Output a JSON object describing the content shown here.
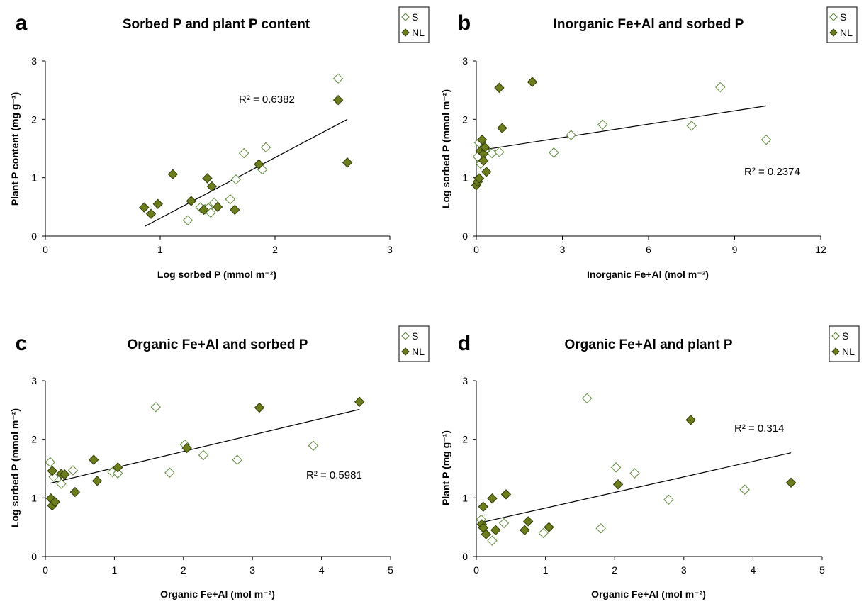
{
  "colors": {
    "nl_fill": "#6b7d1c",
    "s_stroke": "#5e8a3a",
    "axis": "#000000"
  },
  "legend": {
    "s_label": "S",
    "nl_label": "NL"
  },
  "chart_data": [
    {
      "panel": "a",
      "type": "scatter",
      "title": "Sorbed P and plant P content",
      "xlabel": "Log sorbed P (mmol m⁻²)",
      "ylabel": "Plant P content (mg g⁻¹)",
      "xlim": [
        0,
        3
      ],
      "ylim": [
        0,
        3
      ],
      "xticks": [
        0,
        1,
        2,
        3
      ],
      "yticks": [
        0,
        1,
        2,
        3
      ],
      "r2_text": "R² = 0.6382",
      "trendline": [
        [
          0.87,
          0.17
        ],
        [
          2.63,
          2.0
        ]
      ],
      "series": [
        {
          "name": "S",
          "points": [
            [
              1.24,
              0.27
            ],
            [
              1.35,
              0.49
            ],
            [
              1.39,
              0.46
            ],
            [
              1.42,
              0.48
            ],
            [
              1.44,
              0.4
            ],
            [
              1.47,
              0.57
            ],
            [
              1.61,
              0.63
            ],
            [
              1.66,
              0.97
            ],
            [
              1.73,
              1.42
            ],
            [
              1.89,
              1.14
            ],
            [
              1.92,
              1.52
            ],
            [
              2.55,
              2.7
            ]
          ]
        },
        {
          "name": "NL",
          "points": [
            [
              0.86,
              0.49
            ],
            [
              0.92,
              0.38
            ],
            [
              0.98,
              0.55
            ],
            [
              1.11,
              1.06
            ],
            [
              1.27,
              0.6
            ],
            [
              1.38,
              0.45
            ],
            [
              1.41,
              0.99
            ],
            [
              1.45,
              0.85
            ],
            [
              1.5,
              0.5
            ],
            [
              1.65,
              0.45
            ],
            [
              1.86,
              1.23
            ],
            [
              2.55,
              2.33
            ],
            [
              2.63,
              1.26
            ]
          ]
        }
      ]
    },
    {
      "panel": "b",
      "type": "scatter",
      "title": "Inorganic Fe+Al and sorbed P",
      "xlabel": "Inorganic Fe+Al (mol m⁻²)",
      "ylabel": "Log sorbed P (mmol m⁻²)",
      "xlim": [
        0,
        12
      ],
      "ylim": [
        0,
        3
      ],
      "xticks": [
        0,
        3,
        6,
        9,
        12
      ],
      "yticks": [
        0,
        1,
        2,
        3
      ],
      "r2_text": "R² = 0.2374",
      "trendline": [
        [
          0.0,
          1.46
        ],
        [
          10.1,
          2.23
        ]
      ],
      "series": [
        {
          "name": "S",
          "points": [
            [
              0.05,
              1.36
            ],
            [
              0.1,
              1.6
            ],
            [
              0.15,
              1.24
            ],
            [
              0.2,
              1.44
            ],
            [
              0.3,
              1.47
            ],
            [
              0.55,
              1.42
            ],
            [
              0.8,
              1.44
            ],
            [
              2.7,
              1.43
            ],
            [
              3.3,
              1.73
            ],
            [
              4.4,
              1.91
            ],
            [
              7.5,
              1.89
            ],
            [
              8.5,
              2.55
            ],
            [
              10.1,
              1.65
            ]
          ]
        },
        {
          "name": "NL",
          "points": [
            [
              0.0,
              0.87
            ],
            [
              0.05,
              0.93
            ],
            [
              0.1,
              0.99
            ],
            [
              0.15,
              1.46
            ],
            [
              0.2,
              1.65
            ],
            [
              0.25,
              1.41
            ],
            [
              0.3,
              1.52
            ],
            [
              0.35,
              1.1
            ],
            [
              0.25,
              1.29
            ],
            [
              0.8,
              2.54
            ],
            [
              0.9,
              1.85
            ],
            [
              1.95,
              2.64
            ]
          ]
        }
      ]
    },
    {
      "panel": "c",
      "type": "scatter",
      "title": "Organic Fe+Al and sorbed P",
      "xlabel": "Organic Fe+Al (mol m⁻²)",
      "ylabel": "Log sorbed P (mmol m⁻²)",
      "xlim": [
        0,
        5
      ],
      "ylim": [
        0,
        3
      ],
      "xticks": [
        0,
        1,
        2,
        3,
        4,
        5
      ],
      "yticks": [
        0,
        1,
        2,
        3
      ],
      "r2_text": "R² = 0.5981",
      "trendline": [
        [
          0.07,
          1.25
        ],
        [
          4.55,
          2.51
        ]
      ],
      "series": [
        {
          "name": "S",
          "points": [
            [
              0.07,
              1.61
            ],
            [
              0.12,
              1.36
            ],
            [
              0.23,
              1.24
            ],
            [
              0.4,
              1.47
            ],
            [
              0.97,
              1.44
            ],
            [
              1.05,
              1.42
            ],
            [
              1.6,
              2.55
            ],
            [
              1.8,
              1.43
            ],
            [
              2.02,
              1.91
            ],
            [
              2.29,
              1.73
            ],
            [
              2.78,
              1.65
            ],
            [
              3.88,
              1.89
            ]
          ]
        },
        {
          "name": "NL",
          "points": [
            [
              0.08,
              0.99
            ],
            [
              0.1,
              1.46
            ],
            [
              0.1,
              0.87
            ],
            [
              0.14,
              0.93
            ],
            [
              0.23,
              1.41
            ],
            [
              0.28,
              1.4
            ],
            [
              0.43,
              1.1
            ],
            [
              0.7,
              1.65
            ],
            [
              0.75,
              1.29
            ],
            [
              1.05,
              1.52
            ],
            [
              2.05,
              1.85
            ],
            [
              3.1,
              2.54
            ],
            [
              4.55,
              2.64
            ]
          ]
        }
      ]
    },
    {
      "panel": "d",
      "type": "scatter",
      "title": "Organic Fe+Al and plant P",
      "xlabel": "Organic Fe+Al (mol m⁻²)",
      "ylabel": "Plant P (mg g⁻¹)",
      "xlim": [
        0,
        5
      ],
      "ylim": [
        0,
        3
      ],
      "xticks": [
        0,
        1,
        2,
        3,
        4,
        5
      ],
      "yticks": [
        0,
        1,
        2,
        3
      ],
      "r2_text": "R² = 0.314",
      "trendline": [
        [
          0.07,
          0.58
        ],
        [
          4.55,
          1.77
        ]
      ],
      "series": [
        {
          "name": "S",
          "points": [
            [
              0.07,
              0.63
            ],
            [
              0.23,
              0.27
            ],
            [
              0.4,
              0.57
            ],
            [
              0.97,
              0.4
            ],
            [
              1.6,
              2.7
            ],
            [
              1.8,
              0.48
            ],
            [
              2.02,
              1.52
            ],
            [
              2.29,
              1.42
            ],
            [
              2.78,
              0.97
            ],
            [
              3.88,
              1.14
            ]
          ]
        },
        {
          "name": "NL",
          "points": [
            [
              0.08,
              0.55
            ],
            [
              0.1,
              0.85
            ],
            [
              0.1,
              0.49
            ],
            [
              0.14,
              0.38
            ],
            [
              0.23,
              0.99
            ],
            [
              0.28,
              0.45
            ],
            [
              0.43,
              1.06
            ],
            [
              0.7,
              0.45
            ],
            [
              0.75,
              0.6
            ],
            [
              1.05,
              0.5
            ],
            [
              2.05,
              1.23
            ],
            [
              3.1,
              2.33
            ],
            [
              4.55,
              1.26
            ]
          ]
        }
      ]
    }
  ]
}
